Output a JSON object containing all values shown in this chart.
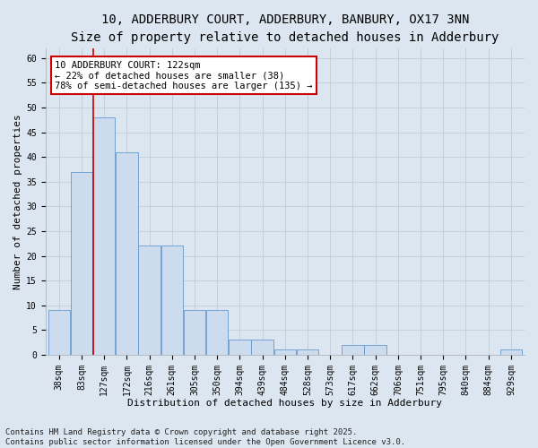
{
  "title_line1": "10, ADDERBURY COURT, ADDERBURY, BANBURY, OX17 3NN",
  "title_line2": "Size of property relative to detached houses in Adderbury",
  "xlabel": "Distribution of detached houses by size in Adderbury",
  "ylabel": "Number of detached properties",
  "bar_color": "#ccdcee",
  "bar_edge_color": "#6699cc",
  "background_color": "#dce6f0",
  "grid_color": "#c0ccd8",
  "categories": [
    "38sqm",
    "83sqm",
    "127sqm",
    "172sqm",
    "216sqm",
    "261sqm",
    "305sqm",
    "350sqm",
    "394sqm",
    "439sqm",
    "484sqm",
    "528sqm",
    "573sqm",
    "617sqm",
    "662sqm",
    "706sqm",
    "751sqm",
    "795sqm",
    "840sqm",
    "884sqm",
    "929sqm"
  ],
  "values": [
    9,
    37,
    48,
    41,
    22,
    22,
    9,
    9,
    3,
    3,
    1,
    1,
    0,
    2,
    2,
    0,
    0,
    0,
    0,
    0,
    1
  ],
  "ylim": [
    0,
    62
  ],
  "yticks": [
    0,
    5,
    10,
    15,
    20,
    25,
    30,
    35,
    40,
    45,
    50,
    55,
    60
  ],
  "vline_color": "#cc0000",
  "annotation_line1": "10 ADDERBURY COURT: 122sqm",
  "annotation_line2": "← 22% of detached houses are smaller (38)",
  "annotation_line3": "78% of semi-detached houses are larger (135) →",
  "annotation_box_color": "#ffffff",
  "annotation_box_edge_color": "#cc0000",
  "footer_text": "Contains HM Land Registry data © Crown copyright and database right 2025.\nContains public sector information licensed under the Open Government Licence v3.0.",
  "title_fontsize": 10,
  "subtitle_fontsize": 9,
  "axis_label_fontsize": 8,
  "tick_fontsize": 7,
  "annotation_fontsize": 7.5,
  "footer_fontsize": 6.5
}
